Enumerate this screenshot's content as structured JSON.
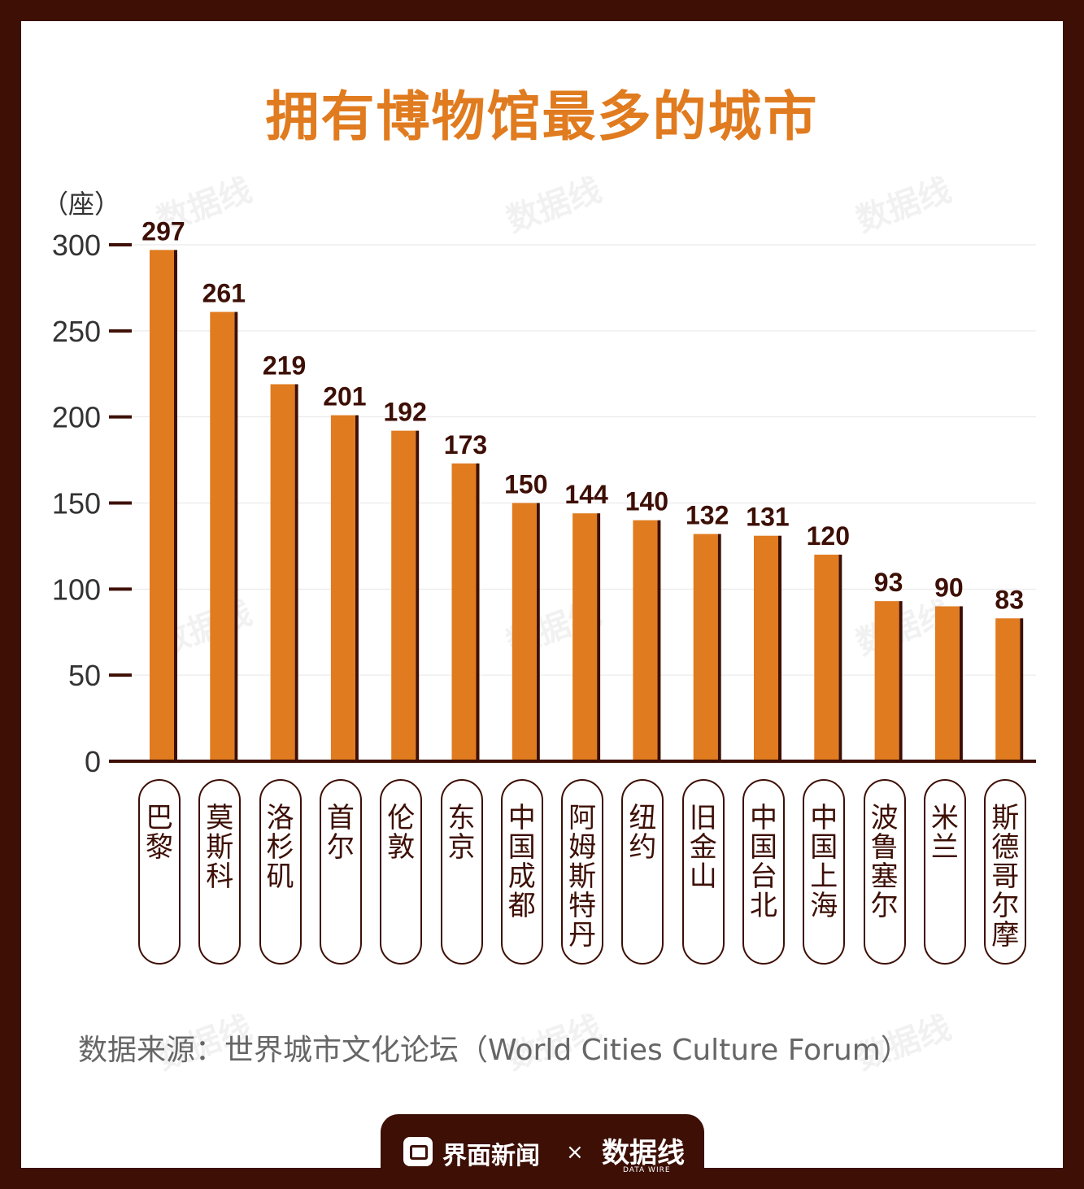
{
  "title": "拥有博物馆最多的城市",
  "unit_label": "（座）",
  "source": "数据来源：世界城市文化论坛（World Cities Culture Forum）",
  "footer": {
    "brand1": "界面新闻",
    "cross": "×",
    "brand2": "数据线",
    "brand2_sub": "DATA WIRE"
  },
  "watermark": "数据线",
  "colors": {
    "bar": "#e07b1f",
    "bar_shadow": "#3d0f05",
    "frame": "#3d0f05",
    "title": "#e07b1f"
  },
  "chart_data": {
    "type": "bar",
    "categories": [
      "巴黎",
      "莫斯科",
      "洛杉矶",
      "首尔",
      "伦敦",
      "东京",
      "中国成都",
      "阿姆斯特丹",
      "纽约",
      "旧金山",
      "中国台北",
      "中国上海",
      "波鲁塞尔",
      "米兰",
      "斯德哥尔摩"
    ],
    "values": [
      297,
      261,
      219,
      201,
      192,
      173,
      150,
      144,
      140,
      132,
      131,
      120,
      93,
      90,
      83
    ],
    "yticks": [
      0,
      50,
      100,
      150,
      200,
      250,
      300
    ],
    "ylim": [
      0,
      300
    ],
    "ylabel": "（座）",
    "grid": true,
    "data_labels": true
  }
}
